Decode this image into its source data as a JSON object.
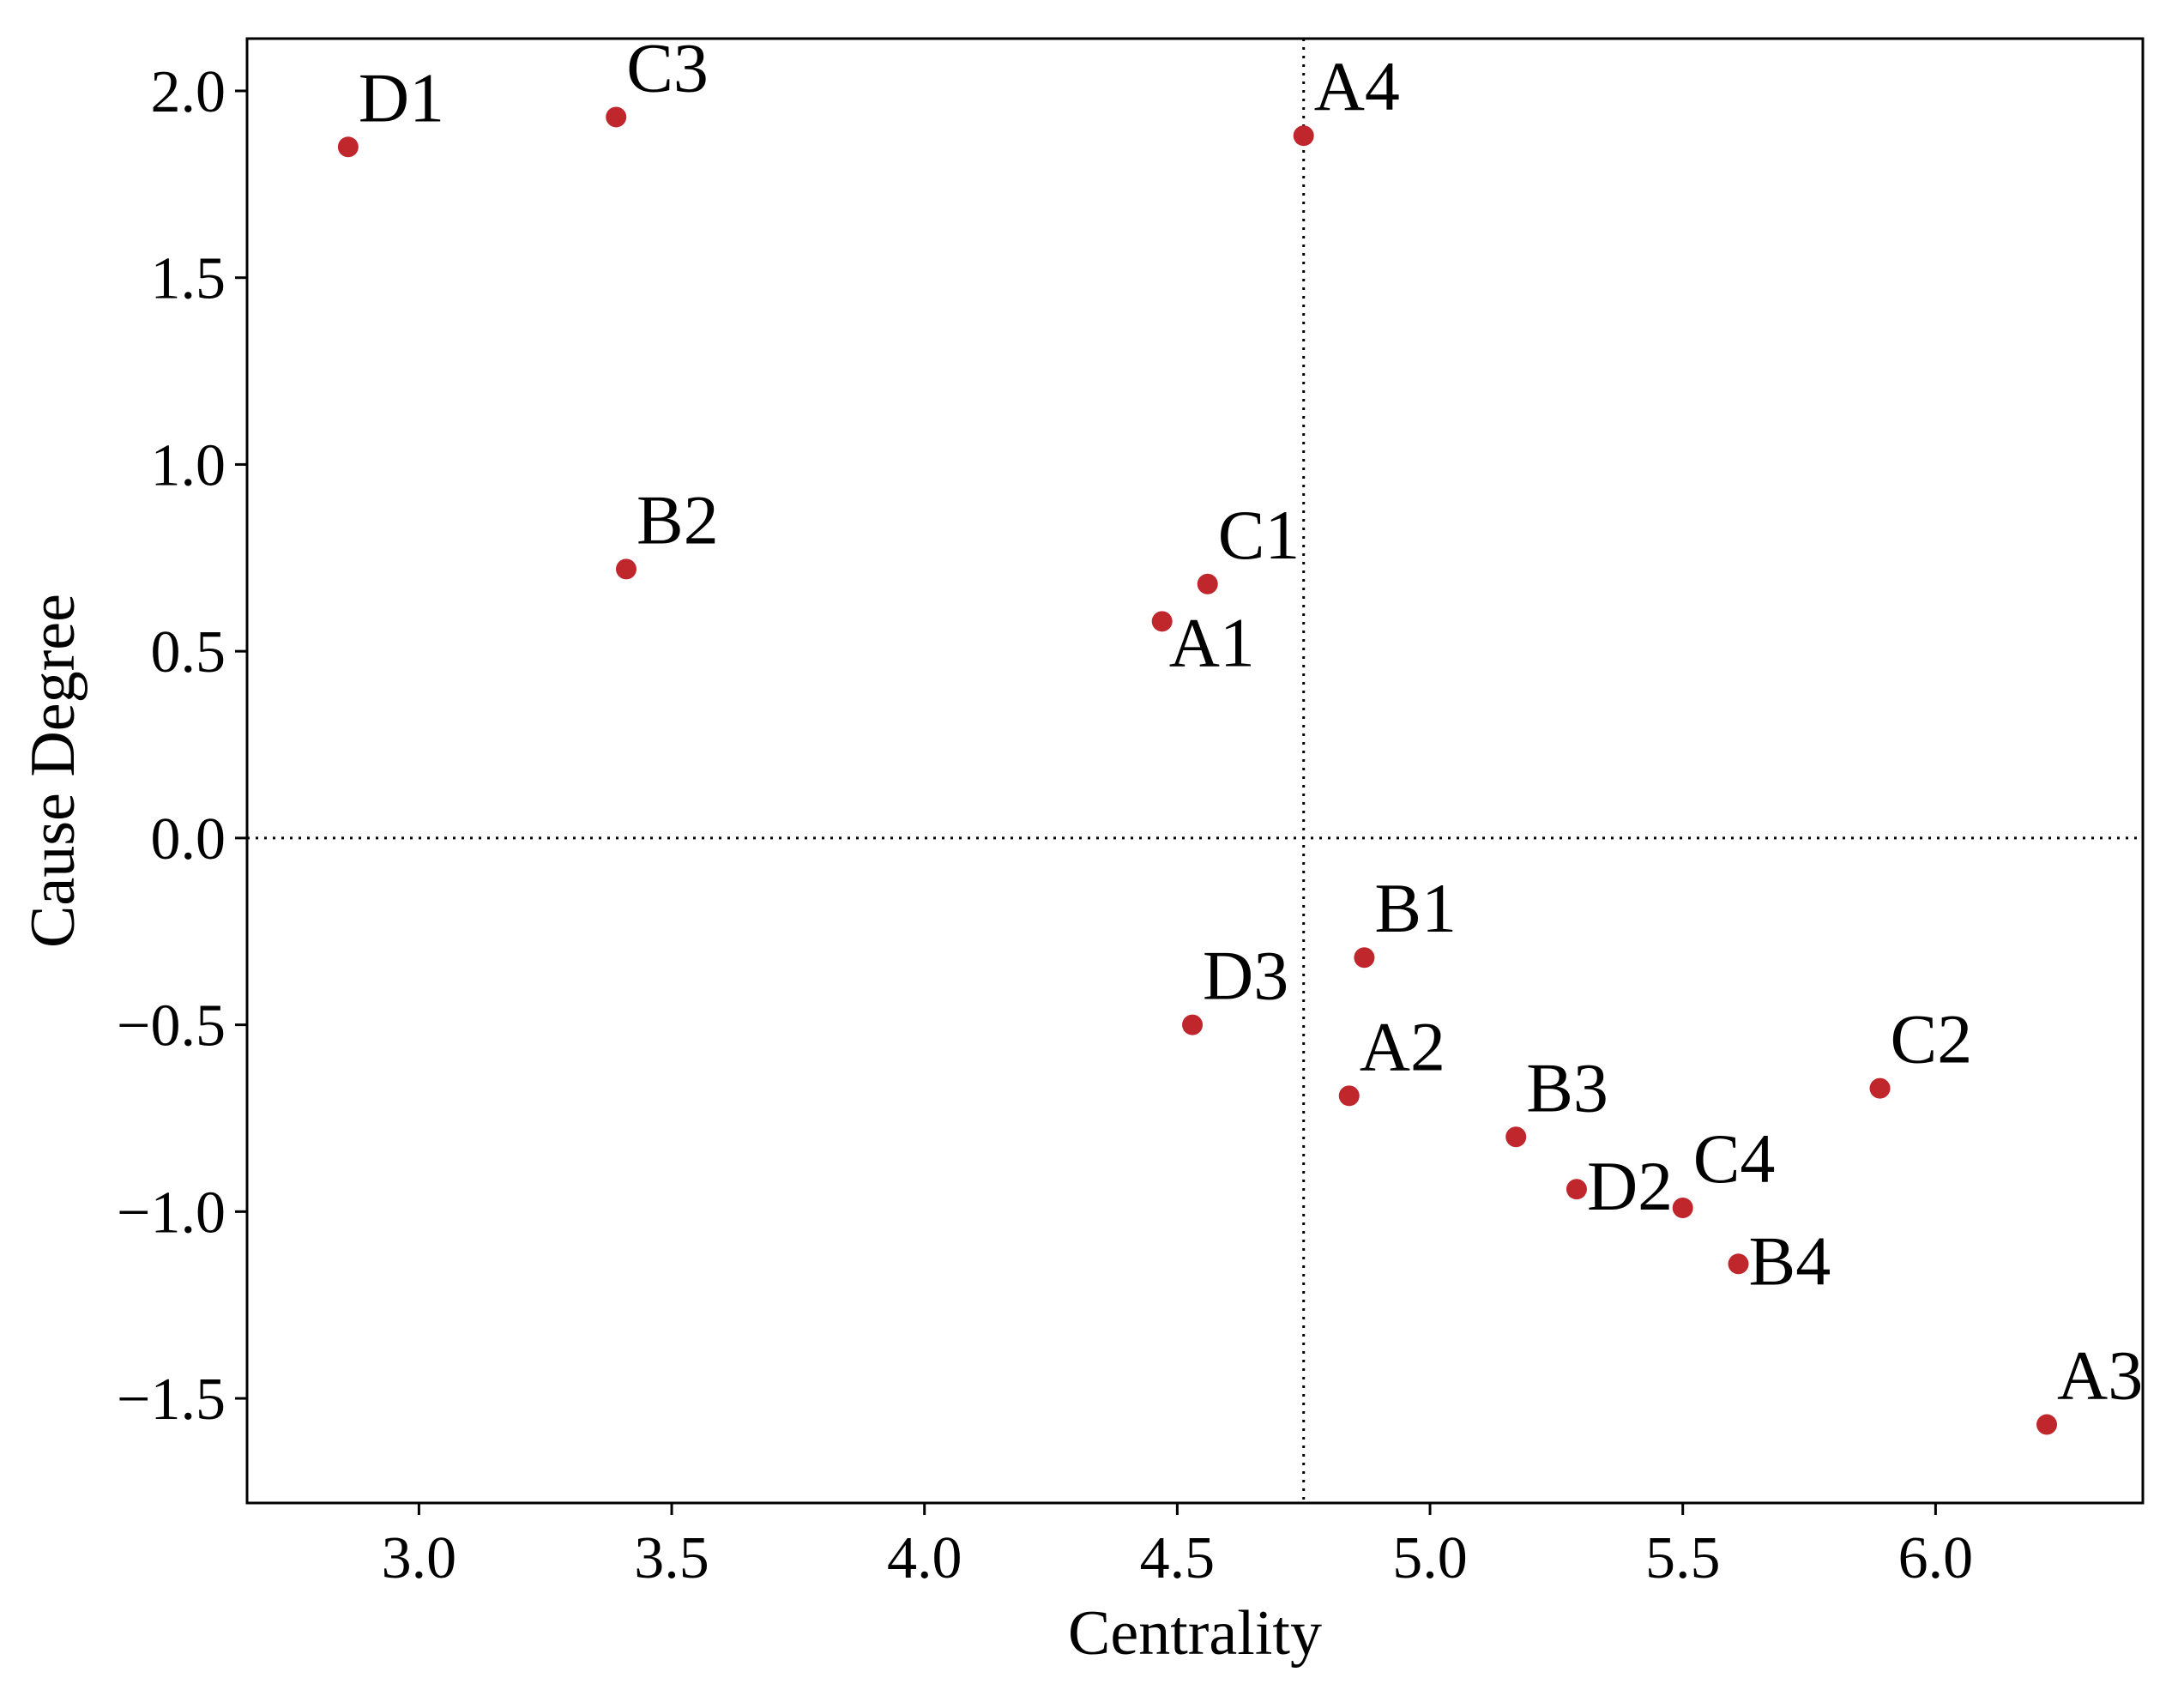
{
  "chart_data": {
    "type": "scatter",
    "title": "",
    "xlabel": "Centrality",
    "ylabel": "Cause Degree",
    "xlim": [
      2.66,
      6.41
    ],
    "ylim": [
      -1.78,
      2.14
    ],
    "xticks": [
      3.0,
      3.5,
      4.0,
      4.5,
      5.0,
      5.5,
      6.0
    ],
    "xtick_labels": [
      "3.0",
      "3.5",
      "4.0",
      "4.5",
      "5.0",
      "5.5",
      "6.0"
    ],
    "yticks": [
      2.0,
      1.5,
      1.0,
      0.5,
      0.0,
      -0.5,
      -1.0,
      -1.5
    ],
    "ytick_labels": [
      "2.0",
      "1.5",
      "1.0",
      "0.5",
      "0.0",
      "−0.5",
      "−1.0",
      "−1.5"
    ],
    "reference_lines": {
      "x": 4.75,
      "y": 0.0,
      "style": "dotted"
    },
    "grid": false,
    "marker_color": "#c0272d",
    "points": [
      {
        "label": "D1",
        "x": 2.86,
        "y": 1.85,
        "label_pos": "upper-right"
      },
      {
        "label": "C3",
        "x": 3.39,
        "y": 1.93,
        "label_pos": "upper-right"
      },
      {
        "label": "A4",
        "x": 4.75,
        "y": 1.88,
        "label_pos": "upper-right"
      },
      {
        "label": "B2",
        "x": 3.41,
        "y": 0.72,
        "label_pos": "upper-right"
      },
      {
        "label": "C1",
        "x": 4.56,
        "y": 0.68,
        "label_pos": "upper-right"
      },
      {
        "label": "A1",
        "x": 4.47,
        "y": 0.58,
        "label_pos": "lower-right"
      },
      {
        "label": "B1",
        "x": 4.87,
        "y": -0.32,
        "label_pos": "upper-right"
      },
      {
        "label": "D3",
        "x": 4.53,
        "y": -0.5,
        "label_pos": "upper-right"
      },
      {
        "label": "A2",
        "x": 4.84,
        "y": -0.69,
        "label_pos": "upper-right"
      },
      {
        "label": "B3",
        "x": 5.17,
        "y": -0.8,
        "label_pos": "upper-right"
      },
      {
        "label": "D2",
        "x": 5.29,
        "y": -0.94,
        "label_pos": "right"
      },
      {
        "label": "C4",
        "x": 5.5,
        "y": -0.99,
        "label_pos": "upper-right"
      },
      {
        "label": "B4",
        "x": 5.61,
        "y": -1.14,
        "label_pos": "right"
      },
      {
        "label": "C2",
        "x": 5.89,
        "y": -0.67,
        "label_pos": "upper-right"
      },
      {
        "label": "A3",
        "x": 6.22,
        "y": -1.57,
        "label_pos": "upper-right"
      }
    ]
  }
}
